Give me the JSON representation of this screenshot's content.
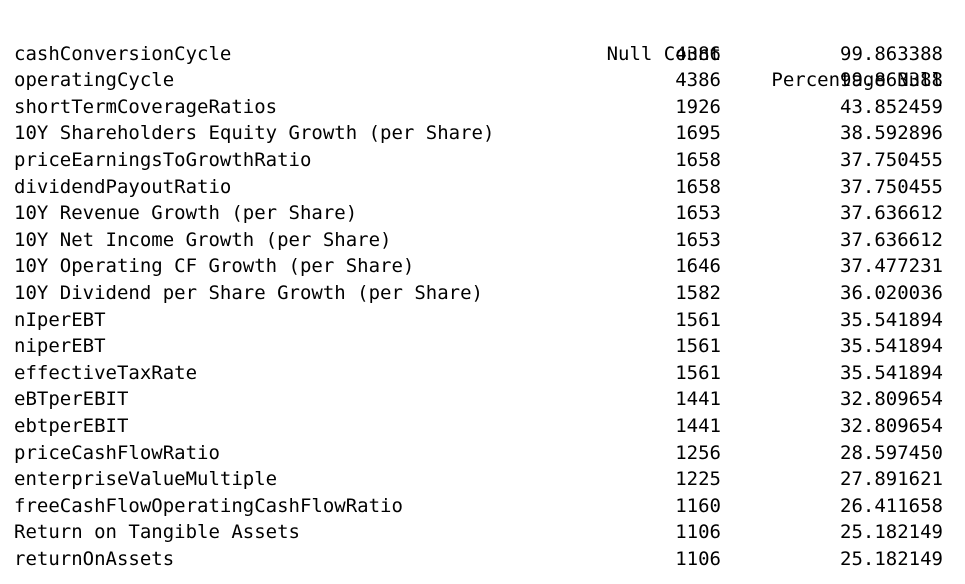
{
  "table": {
    "columns": [
      "Null Count",
      "Percentage Null"
    ],
    "rows": [
      {
        "name": "cashConversionCycle",
        "null_count": "4386",
        "percentage_null": "99.863388"
      },
      {
        "name": "operatingCycle",
        "null_count": "4386",
        "percentage_null": "99.863388"
      },
      {
        "name": "shortTermCoverageRatios",
        "null_count": "1926",
        "percentage_null": "43.852459"
      },
      {
        "name": "10Y Shareholders Equity Growth (per Share)",
        "null_count": "1695",
        "percentage_null": "38.592896"
      },
      {
        "name": "priceEarningsToGrowthRatio",
        "null_count": "1658",
        "percentage_null": "37.750455"
      },
      {
        "name": "dividendPayoutRatio",
        "null_count": "1658",
        "percentage_null": "37.750455"
      },
      {
        "name": "10Y Revenue Growth (per Share)",
        "null_count": "1653",
        "percentage_null": "37.636612"
      },
      {
        "name": "10Y Net Income Growth (per Share)",
        "null_count": "1653",
        "percentage_null": "37.636612"
      },
      {
        "name": "10Y Operating CF Growth (per Share)",
        "null_count": "1646",
        "percentage_null": "37.477231"
      },
      {
        "name": "10Y Dividend per Share Growth (per Share)",
        "null_count": "1582",
        "percentage_null": "36.020036"
      },
      {
        "name": "nIperEBT",
        "null_count": "1561",
        "percentage_null": "35.541894"
      },
      {
        "name": "niperEBT",
        "null_count": "1561",
        "percentage_null": "35.541894"
      },
      {
        "name": "effectiveTaxRate",
        "null_count": "1561",
        "percentage_null": "35.541894"
      },
      {
        "name": "eBTperEBIT",
        "null_count": "1441",
        "percentage_null": "32.809654"
      },
      {
        "name": "ebtperEBIT",
        "null_count": "1441",
        "percentage_null": "32.809654"
      },
      {
        "name": "priceCashFlowRatio",
        "null_count": "1256",
        "percentage_null": "28.597450"
      },
      {
        "name": "enterpriseValueMultiple",
        "null_count": "1225",
        "percentage_null": "27.891621"
      },
      {
        "name": "freeCashFlowOperatingCashFlowRatio",
        "null_count": "1160",
        "percentage_null": "26.411658"
      },
      {
        "name": "Return on Tangible Assets",
        "null_count": "1106",
        "percentage_null": "25.182149"
      },
      {
        "name": "returnOnAssets",
        "null_count": "1106",
        "percentage_null": "25.182149"
      }
    ]
  }
}
